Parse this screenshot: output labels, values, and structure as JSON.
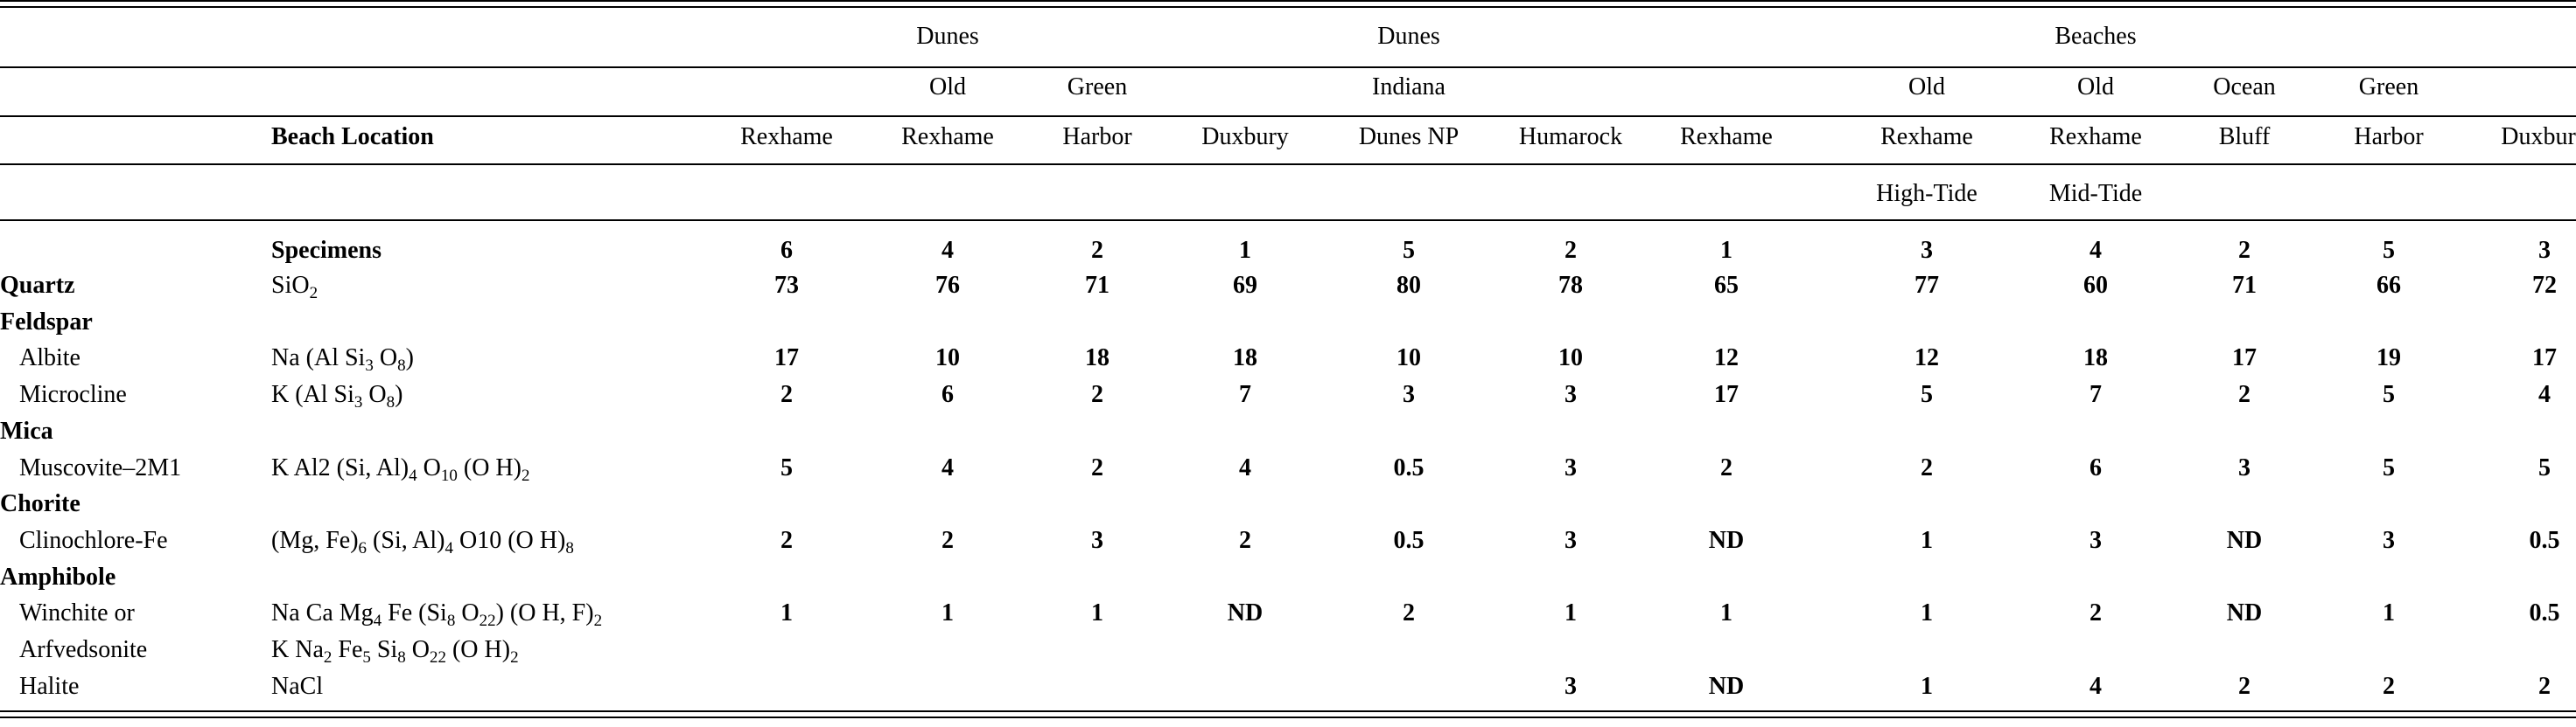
{
  "header": {
    "groups": [
      {
        "label": "Dunes"
      },
      {
        "label": "Dunes"
      },
      {
        "label": "Beaches"
      }
    ],
    "row1_labels": [
      "",
      "Old",
      "Green",
      "",
      "Indiana",
      "",
      "",
      "Old",
      "Old",
      "Ocean",
      "Green",
      ""
    ],
    "beach_location_label": "Beach Location",
    "locations": [
      "Rexhame",
      "Rexhame",
      "Harbor",
      "Duxbury",
      "Dunes NP",
      "Humarock",
      "Rexhame",
      "Rexhame",
      "Rexhame",
      "Bluff",
      "Harbor",
      "Duxbury"
    ],
    "tide_labels": [
      "",
      "",
      "",
      "",
      "",
      "",
      "",
      "High-Tide",
      "Mid-Tide",
      "",
      "",
      ""
    ],
    "specimens_label": "Specimens",
    "specimens": [
      "6",
      "4",
      "2",
      "1",
      "5",
      "2",
      "1",
      "3",
      "4",
      "2",
      "5",
      "3"
    ]
  },
  "rows": [
    {
      "type": "mineral",
      "name": "Quartz",
      "formula": "SiO|2",
      "values": [
        "73",
        "76",
        "71",
        "69",
        "80",
        "78",
        "65",
        "77",
        "60",
        "71",
        "66",
        "72"
      ]
    },
    {
      "type": "group",
      "name": "Feldspar"
    },
    {
      "type": "sub",
      "name": "Albite",
      "formula": "Na (Al Si|3| O|8|)",
      "values": [
        "17",
        "10",
        "18",
        "18",
        "10",
        "10",
        "12",
        "12",
        "18",
        "17",
        "19",
        "17"
      ]
    },
    {
      "type": "sub",
      "name": "Microcline",
      "formula": "K (Al Si|3| O|8|)",
      "values": [
        "2",
        "6",
        "2",
        "7",
        "3",
        "3",
        "17",
        "5",
        "7",
        "2",
        "5",
        "4"
      ]
    },
    {
      "type": "group",
      "name": "Mica"
    },
    {
      "type": "sub",
      "name": "Muscovite–2M1",
      "formula": "K Al2 (Si, Al)|4| O|10| (O H)|2",
      "values": [
        "5",
        "4",
        "2",
        "4",
        "0.5",
        "3",
        "2",
        "2",
        "6",
        "3",
        "5",
        "5"
      ]
    },
    {
      "type": "group",
      "name": "Chorite"
    },
    {
      "type": "sub",
      "name": "Clinochlore-Fe",
      "formula": "(Mg, Fe)|6| (Si, Al)|4| O10 (O H)|8",
      "values": [
        "2",
        "2",
        "3",
        "2",
        "0.5",
        "3",
        "ND",
        "1",
        "3",
        "ND",
        "3",
        "0.5"
      ]
    },
    {
      "type": "group",
      "name": "Amphibole"
    },
    {
      "type": "sub",
      "name": "Winchite or",
      "formula": "Na Ca Mg|4| Fe (Si|8| O|22|) (O H, F)|2",
      "values": [
        "1",
        "1",
        "1",
        "ND",
        "2",
        "1",
        "1",
        "1",
        "2",
        "ND",
        "1",
        "0.5"
      ]
    },
    {
      "type": "sub",
      "name": "Arfvedsonite",
      "formula": "K Na|2| Fe|5| Si|8| O|22| (O H)|2",
      "values": [
        "",
        "",
        "",
        "",
        "",
        "",
        "",
        "",
        "",
        "",
        "",
        ""
      ]
    },
    {
      "type": "sub",
      "name": "Halite",
      "formula": "NaCl",
      "values": [
        "",
        "",
        "",
        "",
        "",
        "3",
        "ND",
        "1",
        "4",
        "2",
        "2",
        "2"
      ]
    }
  ]
}
